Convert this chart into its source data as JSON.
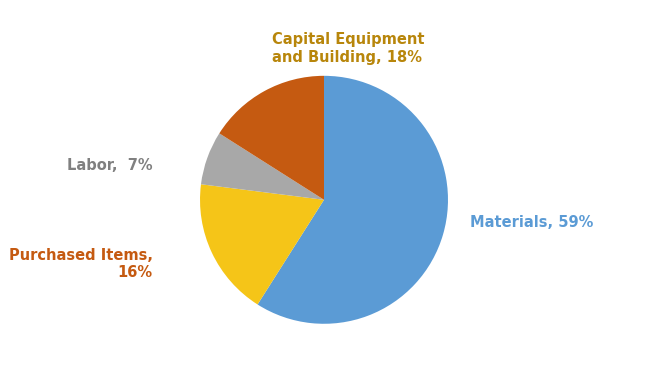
{
  "labels": [
    "Materials",
    "Capital Equipment\nand Building",
    "Labor",
    "Purchased Items"
  ],
  "values": [
    59,
    18,
    7,
    16
  ],
  "colors": [
    "#5B9BD5",
    "#F5C518",
    "#A8A8A8",
    "#C55A11"
  ],
  "label_colors": [
    "#5B9BD5",
    "#B8860B",
    "#808080",
    "#C55A11"
  ],
  "startangle": 90,
  "background_color": "#ffffff",
  "figsize": [
    6.48,
    3.81
  ],
  "dpi": 100
}
